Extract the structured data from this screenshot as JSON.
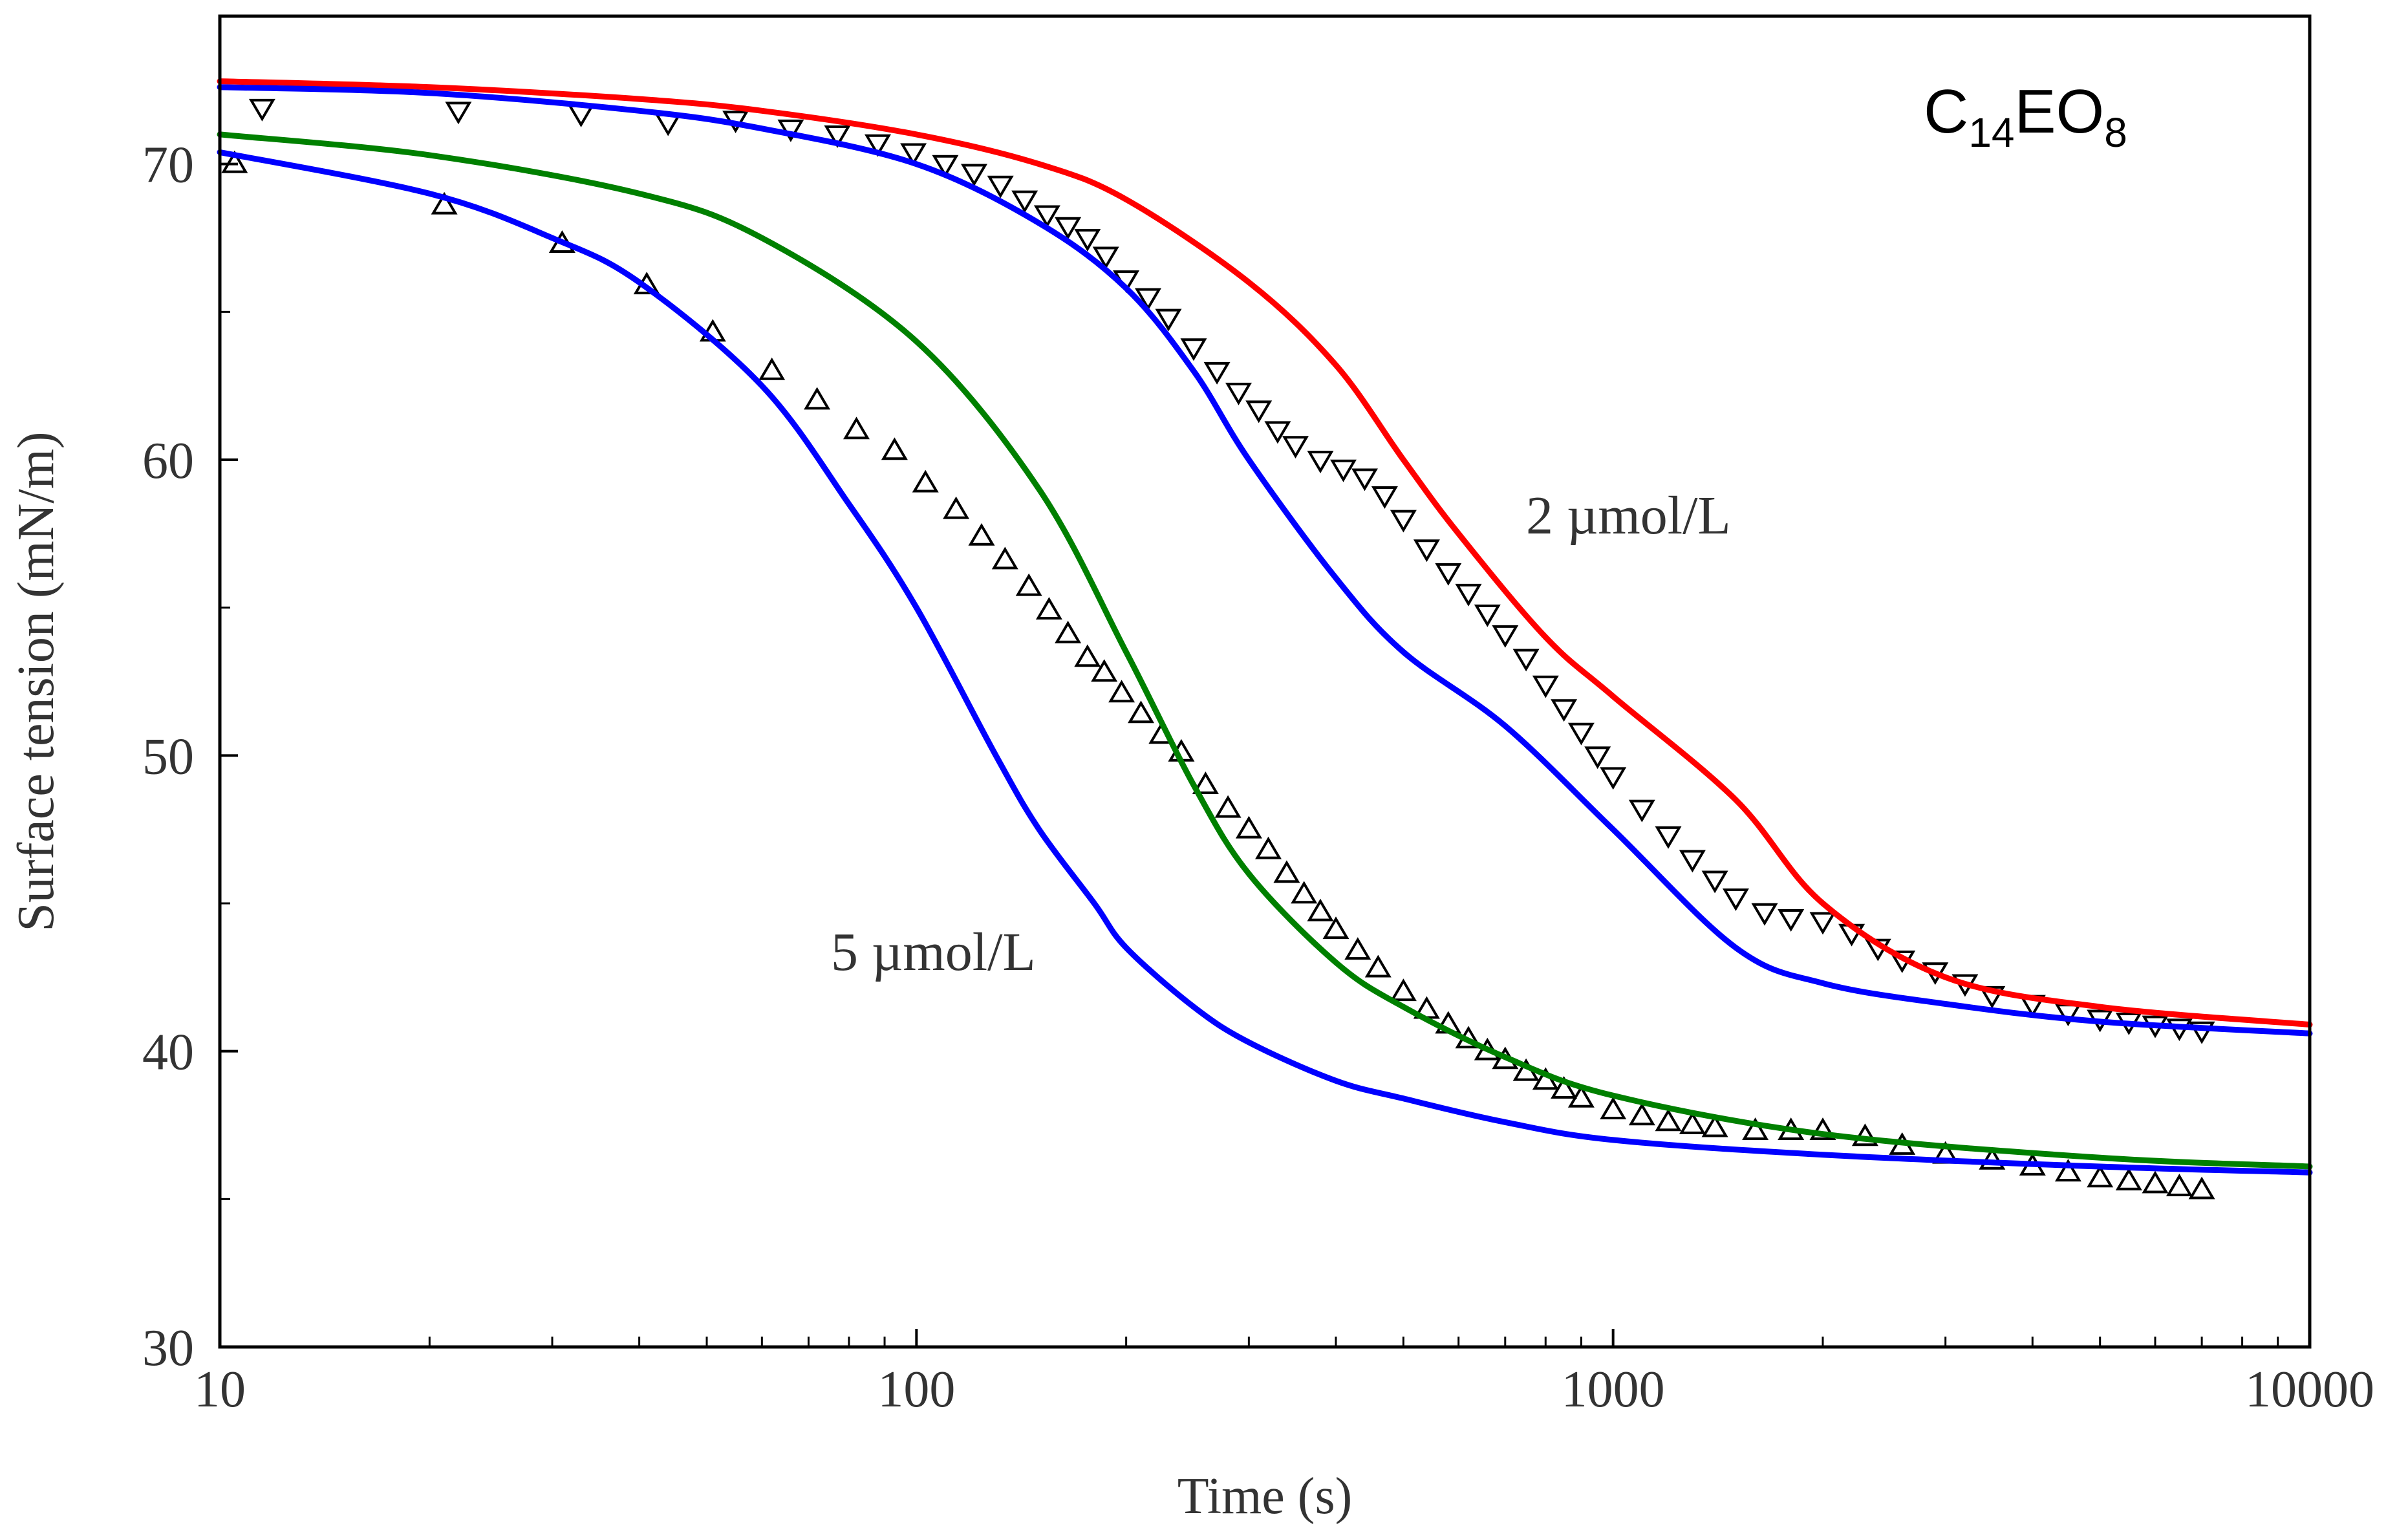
{
  "chart_data": {
    "type": "line",
    "title": "",
    "xlabel": "Time (s)",
    "ylabel": "Surface tension (mN/m)",
    "xscale": "log",
    "xlim": [
      10,
      10000
    ],
    "ylim": [
      30,
      75
    ],
    "x_ticks": [
      10,
      100,
      1000,
      10000
    ],
    "x_tick_labels": [
      "10",
      "100",
      "1000",
      "10000"
    ],
    "y_ticks": [
      30,
      40,
      50,
      60,
      70
    ],
    "y_tick_labels": [
      "30",
      "40",
      "50",
      "60",
      "70"
    ],
    "grid": false,
    "annotations": {
      "compound_base": "C",
      "compound_sub1": "14",
      "compound_mid": "EO",
      "compound_sub2": "8",
      "label_2": "2 µmol/L",
      "label_5": "5 µmol/L"
    },
    "series": [
      {
        "name": "fit red (2 µmol/L)",
        "kind": "line",
        "color": "#ff0000",
        "x": [
          10,
          20,
          40,
          60,
          100,
          150,
          200,
          300,
          400,
          500,
          600,
          800,
          1000,
          1500,
          2000,
          3000,
          5000,
          10000
        ],
        "y": [
          72.8,
          72.6,
          72.2,
          71.8,
          71.0,
          70.0,
          68.8,
          66.0,
          63.2,
          60.0,
          57.5,
          54.0,
          52.0,
          48.5,
          45.0,
          42.5,
          41.5,
          40.9
        ]
      },
      {
        "name": "fit blue (2 µmol/L)",
        "kind": "line",
        "color": "#0000ff",
        "x": [
          10,
          20,
          40,
          60,
          100,
          150,
          200,
          250,
          300,
          400,
          500,
          700,
          1000,
          1500,
          2000,
          3000,
          5000,
          10000
        ],
        "y": [
          72.6,
          72.4,
          71.8,
          71.2,
          70.0,
          68.0,
          65.8,
          63.0,
          60.0,
          56.0,
          53.5,
          51.0,
          47.5,
          43.5,
          42.3,
          41.6,
          41.0,
          40.6
        ]
      },
      {
        "name": "fit green (5 µmol/L)",
        "kind": "line",
        "color": "#008000",
        "x": [
          10,
          20,
          40,
          60,
          100,
          150,
          200,
          250,
          300,
          400,
          500,
          700,
          1000,
          2000,
          5000,
          10000
        ],
        "y": [
          71.0,
          70.3,
          69.0,
          67.5,
          64.0,
          59.0,
          53.5,
          49.0,
          46.0,
          43.0,
          41.5,
          39.8,
          38.5,
          37.2,
          36.4,
          36.1
        ]
      },
      {
        "name": "fit blue (5 µmol/L)",
        "kind": "line",
        "color": "#0000ff",
        "x": [
          10,
          20,
          30,
          40,
          60,
          80,
          100,
          130,
          150,
          180,
          200,
          250,
          300,
          400,
          500,
          700,
          1000,
          2000,
          5000,
          10000
        ],
        "y": [
          70.4,
          69.0,
          67.5,
          66.0,
          62.5,
          58.5,
          55.0,
          50.0,
          47.5,
          45.0,
          43.5,
          41.5,
          40.3,
          39.0,
          38.4,
          37.6,
          37.0,
          36.5,
          36.1,
          35.9
        ]
      },
      {
        "name": "data 2 µmol/L",
        "kind": "scatter",
        "marker": "triangle-down",
        "color": "#000000",
        "x": [
          11.5,
          22,
          33,
          44,
          55,
          66,
          77,
          88,
          99,
          110,
          121,
          132,
          143,
          154,
          165,
          176,
          187,
          200,
          215,
          230,
          250,
          270,
          290,
          310,
          330,
          350,
          380,
          410,
          440,
          470,
          500,
          540,
          580,
          620,
          660,
          700,
          750,
          800,
          850,
          900,
          950,
          1000,
          1100,
          1200,
          1300,
          1400,
          1500,
          1650,
          1800,
          2000,
          2200,
          2400,
          2600,
          2900,
          3200,
          3500,
          4000,
          4500,
          5000,
          5500,
          6000,
          6500,
          7000
        ],
        "y": [
          71.9,
          71.8,
          71.7,
          71.4,
          71.5,
          71.2,
          71.0,
          70.7,
          70.4,
          70.0,
          69.7,
          69.3,
          68.8,
          68.3,
          67.9,
          67.5,
          66.9,
          66.1,
          65.5,
          64.8,
          63.8,
          63.0,
          62.3,
          61.7,
          61.0,
          60.5,
          60.0,
          59.7,
          59.4,
          58.8,
          58.0,
          57.0,
          56.2,
          55.5,
          54.8,
          54.1,
          53.3,
          52.4,
          51.6,
          50.8,
          50.0,
          49.3,
          48.2,
          47.3,
          46.5,
          45.8,
          45.2,
          44.7,
          44.5,
          44.4,
          44.0,
          43.5,
          43.1,
          42.7,
          42.3,
          41.9,
          41.6,
          41.3,
          41.1,
          41.0,
          40.9,
          40.8,
          40.7
        ]
      },
      {
        "name": "data 5 µmol/L",
        "kind": "scatter",
        "marker": "triangle-up",
        "color": "#000000",
        "x": [
          10.5,
          21,
          31,
          41,
          51,
          62,
          72,
          82,
          93,
          103,
          114,
          124,
          134,
          145,
          155,
          165,
          176,
          186,
          197,
          210,
          225,
          240,
          260,
          280,
          300,
          320,
          340,
          360,
          380,
          400,
          430,
          460,
          500,
          540,
          580,
          620,
          660,
          700,
          750,
          800,
          850,
          900,
          1000,
          1100,
          1200,
          1300,
          1400,
          1600,
          1800,
          2000,
          2300,
          2600,
          3000,
          3500,
          4000,
          4500,
          5000,
          5500,
          6000,
          6500,
          7000
        ],
        "y": [
          70.0,
          68.6,
          67.3,
          65.9,
          64.3,
          63.0,
          62.0,
          61.0,
          60.3,
          59.2,
          58.3,
          57.4,
          56.6,
          55.7,
          54.9,
          54.1,
          53.3,
          52.8,
          52.1,
          51.4,
          50.7,
          50.1,
          49.0,
          48.2,
          47.5,
          46.8,
          46.0,
          45.3,
          44.7,
          44.1,
          43.4,
          42.8,
          42.0,
          41.4,
          40.9,
          40.4,
          40.0,
          39.7,
          39.3,
          39.0,
          38.7,
          38.4,
          38.0,
          37.8,
          37.6,
          37.5,
          37.4,
          37.3,
          37.3,
          37.3,
          37.1,
          36.8,
          36.5,
          36.3,
          36.1,
          35.9,
          35.7,
          35.6,
          35.5,
          35.4,
          35.3
        ]
      }
    ]
  }
}
